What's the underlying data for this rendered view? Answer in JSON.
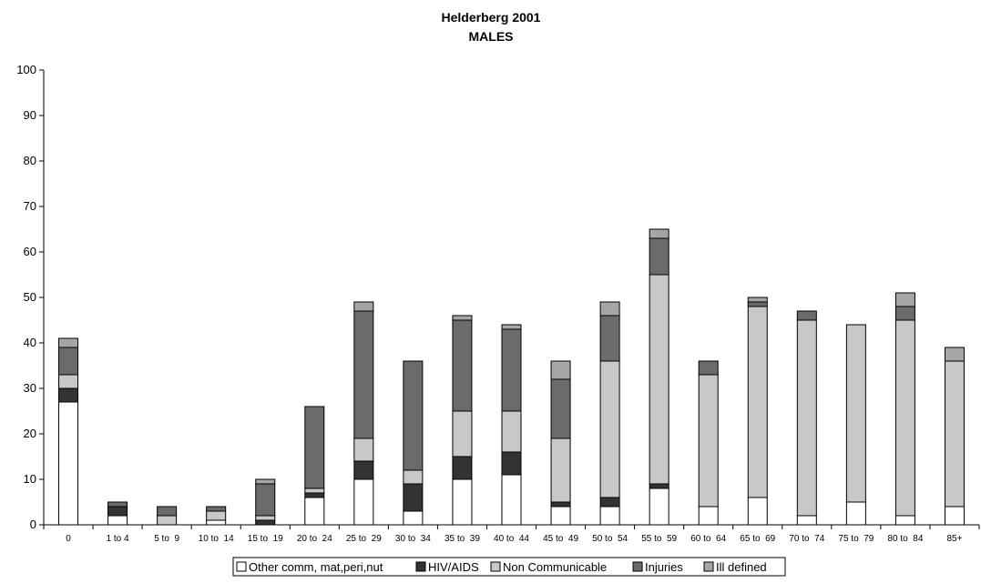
{
  "chart_data": {
    "type": "bar",
    "stacked": true,
    "title": "Helderberg 2001",
    "subtitle": "MALES",
    "ylim": [
      0,
      100
    ],
    "yticks": [
      0,
      10,
      20,
      30,
      40,
      50,
      60,
      70,
      80,
      90,
      100
    ],
    "grid": false,
    "legend_position": "bottom",
    "categories": [
      "0",
      "1 to 4",
      "5 to  9",
      "10 to  14",
      "15 to  19",
      "20 to  24",
      "25 to  29",
      "30 to  34",
      "35 to  39",
      "40 to  44",
      "45 to  49",
      "50 to  54",
      "55 to  59",
      "60 to  64",
      "65 to  69",
      "70 to  74",
      "75 to  79",
      "80 to  84",
      "85+"
    ],
    "series": [
      {
        "name": "Other comm, mat,peri,nut",
        "color": "#ffffff",
        "values": [
          27,
          2,
          0,
          1,
          0,
          6,
          10,
          3,
          10,
          11,
          4,
          4,
          8,
          4,
          6,
          2,
          5,
          2,
          4
        ]
      },
      {
        "name": "HIV/AIDS",
        "color": "#333333",
        "values": [
          3,
          2,
          0,
          0,
          1,
          1,
          4,
          6,
          5,
          5,
          1,
          2,
          1,
          0,
          0,
          0,
          0,
          0,
          0
        ]
      },
      {
        "name": "Non Communicable",
        "color": "#c8c8c8",
        "values": [
          3,
          0,
          2,
          2,
          1,
          1,
          5,
          3,
          10,
          9,
          14,
          30,
          46,
          29,
          42,
          43,
          39,
          43,
          32
        ]
      },
      {
        "name": "Injuries",
        "color": "#6b6b6b",
        "values": [
          6,
          1,
          2,
          1,
          7,
          18,
          28,
          24,
          20,
          18,
          13,
          10,
          8,
          3,
          1,
          2,
          0,
          3,
          0
        ]
      },
      {
        "name": "Ill defined",
        "color": "#a6a6a6",
        "values": [
          2,
          0,
          0,
          0,
          1,
          0,
          2,
          0,
          1,
          1,
          4,
          3,
          2,
          0,
          1,
          0,
          0,
          3,
          3
        ]
      }
    ]
  }
}
